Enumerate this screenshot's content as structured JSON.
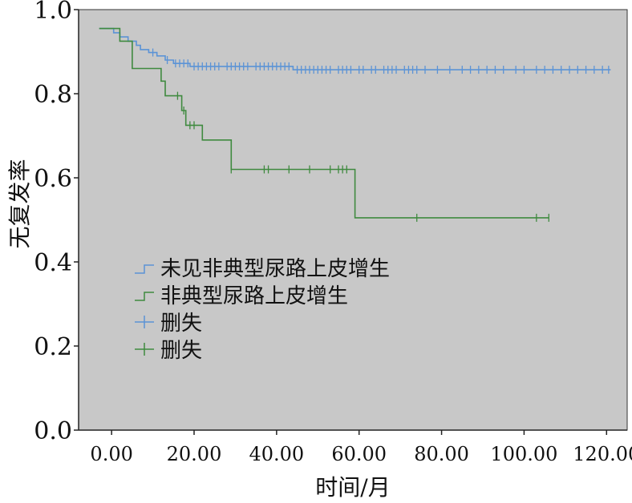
{
  "chart_data": {
    "type": "line",
    "subtype": "kaplan-meier",
    "title": "",
    "xlabel": "时间/月",
    "ylabel": "无复发率",
    "xlim": [
      -8,
      125
    ],
    "ylim": [
      0.0,
      1.0
    ],
    "x_ticks": [
      0,
      20,
      40,
      60,
      80,
      100,
      120
    ],
    "x_tick_labels": [
      "0.00",
      "20.00",
      "40.00",
      "60.00",
      "80.00",
      "100.00",
      "120.00"
    ],
    "y_ticks": [
      0.0,
      0.2,
      0.4,
      0.6,
      0.8,
      1.0
    ],
    "y_tick_labels": [
      "0.0",
      "0.2",
      "0.4",
      "0.6",
      "0.8",
      "1.0"
    ],
    "grid": false,
    "background": "#c8c8c8",
    "legend": {
      "position": "center-left",
      "entries": [
        {
          "label": "未见非典型尿路上皮增生",
          "kind": "line",
          "series": 0
        },
        {
          "label": "非典型尿路上皮增生",
          "kind": "line",
          "series": 1
        },
        {
          "label": "删失",
          "kind": "censor",
          "series": 0
        },
        {
          "label": "删失",
          "kind": "censor",
          "series": 1
        }
      ]
    },
    "series": [
      {
        "name": "未见非典型尿路上皮增生",
        "color": "#5b93d6",
        "steps": [
          [
            -3,
            0.955
          ],
          [
            0.5,
            0.955
          ],
          [
            0.5,
            0.945
          ],
          [
            2,
            0.945
          ],
          [
            2,
            0.935
          ],
          [
            4,
            0.935
          ],
          [
            4,
            0.925
          ],
          [
            6,
            0.925
          ],
          [
            6,
            0.915
          ],
          [
            7,
            0.915
          ],
          [
            7,
            0.905
          ],
          [
            9,
            0.905
          ],
          [
            9,
            0.898
          ],
          [
            11,
            0.898
          ],
          [
            11,
            0.89
          ],
          [
            13,
            0.89
          ],
          [
            13,
            0.88
          ],
          [
            15,
            0.88
          ],
          [
            15,
            0.872
          ],
          [
            19,
            0.872
          ],
          [
            19,
            0.865
          ],
          [
            44,
            0.865
          ],
          [
            44,
            0.857
          ],
          [
            121,
            0.857
          ]
        ],
        "censor": [
          [
            10,
            0.898
          ],
          [
            13.5,
            0.88
          ],
          [
            15.5,
            0.872
          ],
          [
            16.5,
            0.872
          ],
          [
            17.5,
            0.872
          ],
          [
            18.5,
            0.872
          ],
          [
            20,
            0.865
          ],
          [
            21,
            0.865
          ],
          [
            22,
            0.865
          ],
          [
            23,
            0.865
          ],
          [
            24,
            0.865
          ],
          [
            25,
            0.865
          ],
          [
            26,
            0.865
          ],
          [
            28,
            0.865
          ],
          [
            29,
            0.865
          ],
          [
            30,
            0.865
          ],
          [
            31,
            0.865
          ],
          [
            32,
            0.865
          ],
          [
            33,
            0.865
          ],
          [
            35,
            0.865
          ],
          [
            36,
            0.865
          ],
          [
            37,
            0.865
          ],
          [
            38,
            0.865
          ],
          [
            39,
            0.865
          ],
          [
            40,
            0.865
          ],
          [
            41,
            0.865
          ],
          [
            42,
            0.865
          ],
          [
            43,
            0.865
          ],
          [
            45,
            0.857
          ],
          [
            46,
            0.857
          ],
          [
            47,
            0.857
          ],
          [
            48,
            0.857
          ],
          [
            49,
            0.857
          ],
          [
            50,
            0.857
          ],
          [
            51,
            0.857
          ],
          [
            52,
            0.857
          ],
          [
            53,
            0.857
          ],
          [
            55,
            0.857
          ],
          [
            56,
            0.857
          ],
          [
            57,
            0.857
          ],
          [
            58,
            0.857
          ],
          [
            60,
            0.857
          ],
          [
            61,
            0.857
          ],
          [
            63,
            0.857
          ],
          [
            64,
            0.857
          ],
          [
            66,
            0.857
          ],
          [
            67,
            0.857
          ],
          [
            68,
            0.857
          ],
          [
            69,
            0.857
          ],
          [
            71,
            0.857
          ],
          [
            72,
            0.857
          ],
          [
            73,
            0.857
          ],
          [
            74,
            0.857
          ],
          [
            76,
            0.857
          ],
          [
            79,
            0.857
          ],
          [
            82,
            0.857
          ],
          [
            85,
            0.857
          ],
          [
            87,
            0.857
          ],
          [
            89,
            0.857
          ],
          [
            91,
            0.857
          ],
          [
            93,
            0.857
          ],
          [
            95,
            0.857
          ],
          [
            98,
            0.857
          ],
          [
            100,
            0.857
          ],
          [
            103,
            0.857
          ],
          [
            105,
            0.857
          ],
          [
            107,
            0.857
          ],
          [
            109,
            0.857
          ],
          [
            111,
            0.857
          ],
          [
            113,
            0.857
          ],
          [
            115,
            0.857
          ],
          [
            117,
            0.857
          ],
          [
            119,
            0.857
          ],
          [
            120.5,
            0.857
          ]
        ]
      },
      {
        "name": "非典型尿路上皮增生",
        "color": "#3f8a3f",
        "steps": [
          [
            -3,
            0.955
          ],
          [
            2,
            0.955
          ],
          [
            2,
            0.925
          ],
          [
            5,
            0.925
          ],
          [
            5,
            0.86
          ],
          [
            12,
            0.86
          ],
          [
            12,
            0.83
          ],
          [
            13,
            0.83
          ],
          [
            13,
            0.795
          ],
          [
            17,
            0.795
          ],
          [
            17,
            0.76
          ],
          [
            18,
            0.76
          ],
          [
            18,
            0.725
          ],
          [
            22,
            0.725
          ],
          [
            22,
            0.69
          ],
          [
            29,
            0.69
          ],
          [
            29,
            0.62
          ],
          [
            59,
            0.62
          ],
          [
            59,
            0.505
          ],
          [
            106,
            0.505
          ]
        ],
        "censor": [
          [
            16,
            0.795
          ],
          [
            17.5,
            0.76
          ],
          [
            19,
            0.725
          ],
          [
            20,
            0.725
          ],
          [
            29,
            0.62
          ],
          [
            37,
            0.62
          ],
          [
            38,
            0.62
          ],
          [
            43,
            0.62
          ],
          [
            48,
            0.62
          ],
          [
            53,
            0.62
          ],
          [
            55,
            0.62
          ],
          [
            56,
            0.62
          ],
          [
            57,
            0.62
          ],
          [
            74,
            0.505
          ],
          [
            103,
            0.505
          ],
          [
            106,
            0.505
          ]
        ]
      }
    ]
  }
}
